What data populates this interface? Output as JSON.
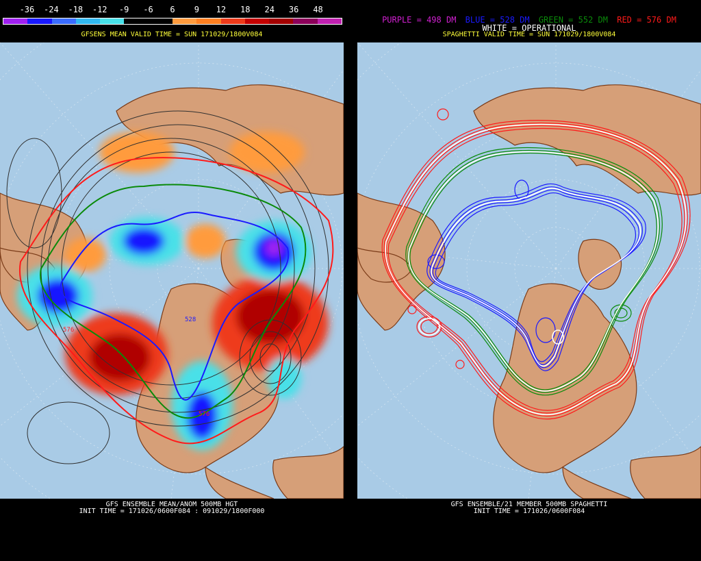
{
  "left": {
    "scale_ticks": [
      "-36",
      "-24",
      "-18",
      "-12",
      "-9",
      "-6",
      "6",
      "9",
      "12",
      "18",
      "24",
      "36",
      "48"
    ],
    "scale_colors": [
      "#a020f0",
      "#1818ff",
      "#3a6cff",
      "#31b8f0",
      "#48e0e8",
      "#000000",
      "#000000",
      "#ff9b3e",
      "#ff7f20",
      "#ee3a1a",
      "#c40000",
      "#a30000",
      "#8c005a",
      "#c020b0"
    ],
    "valid_time": "GFSENS MEAN VALID TIME = SUN 171029/1800V084",
    "footer_line1": "GFS ENSEMBLE MEAN/ANOM 500MB HGT",
    "footer_line2": "INIT TIME = 171026/0600F084 : 091029/1800F000",
    "contour_labels": {
      "a": "576",
      "b": "528",
      "c": "576"
    }
  },
  "right": {
    "legend": {
      "purple": "PURPLE = 498 DM",
      "blue": "BLUE = 528 DM",
      "green": "GREEN = 552 DM",
      "red": "RED = 576 DM",
      "white": "WHITE = OPERATIONAL"
    },
    "valid_time": "SPAGHETTI VALID TIME = SUN 171029/1800V084",
    "footer_line1": "GFS ENSEMBLE/21 MEMBER 500MB SPAGHETTI",
    "footer_line2": "INIT TIME = 171026/0600F084"
  },
  "colors": {
    "ocean": "#a9cbe6",
    "land": "#d69f78",
    "coast": "#7a3b18",
    "red": "#ff1a1a",
    "green": "#0a8a0a",
    "blue": "#1a1aff",
    "white": "#ffffff",
    "purple": "#d020d0"
  }
}
